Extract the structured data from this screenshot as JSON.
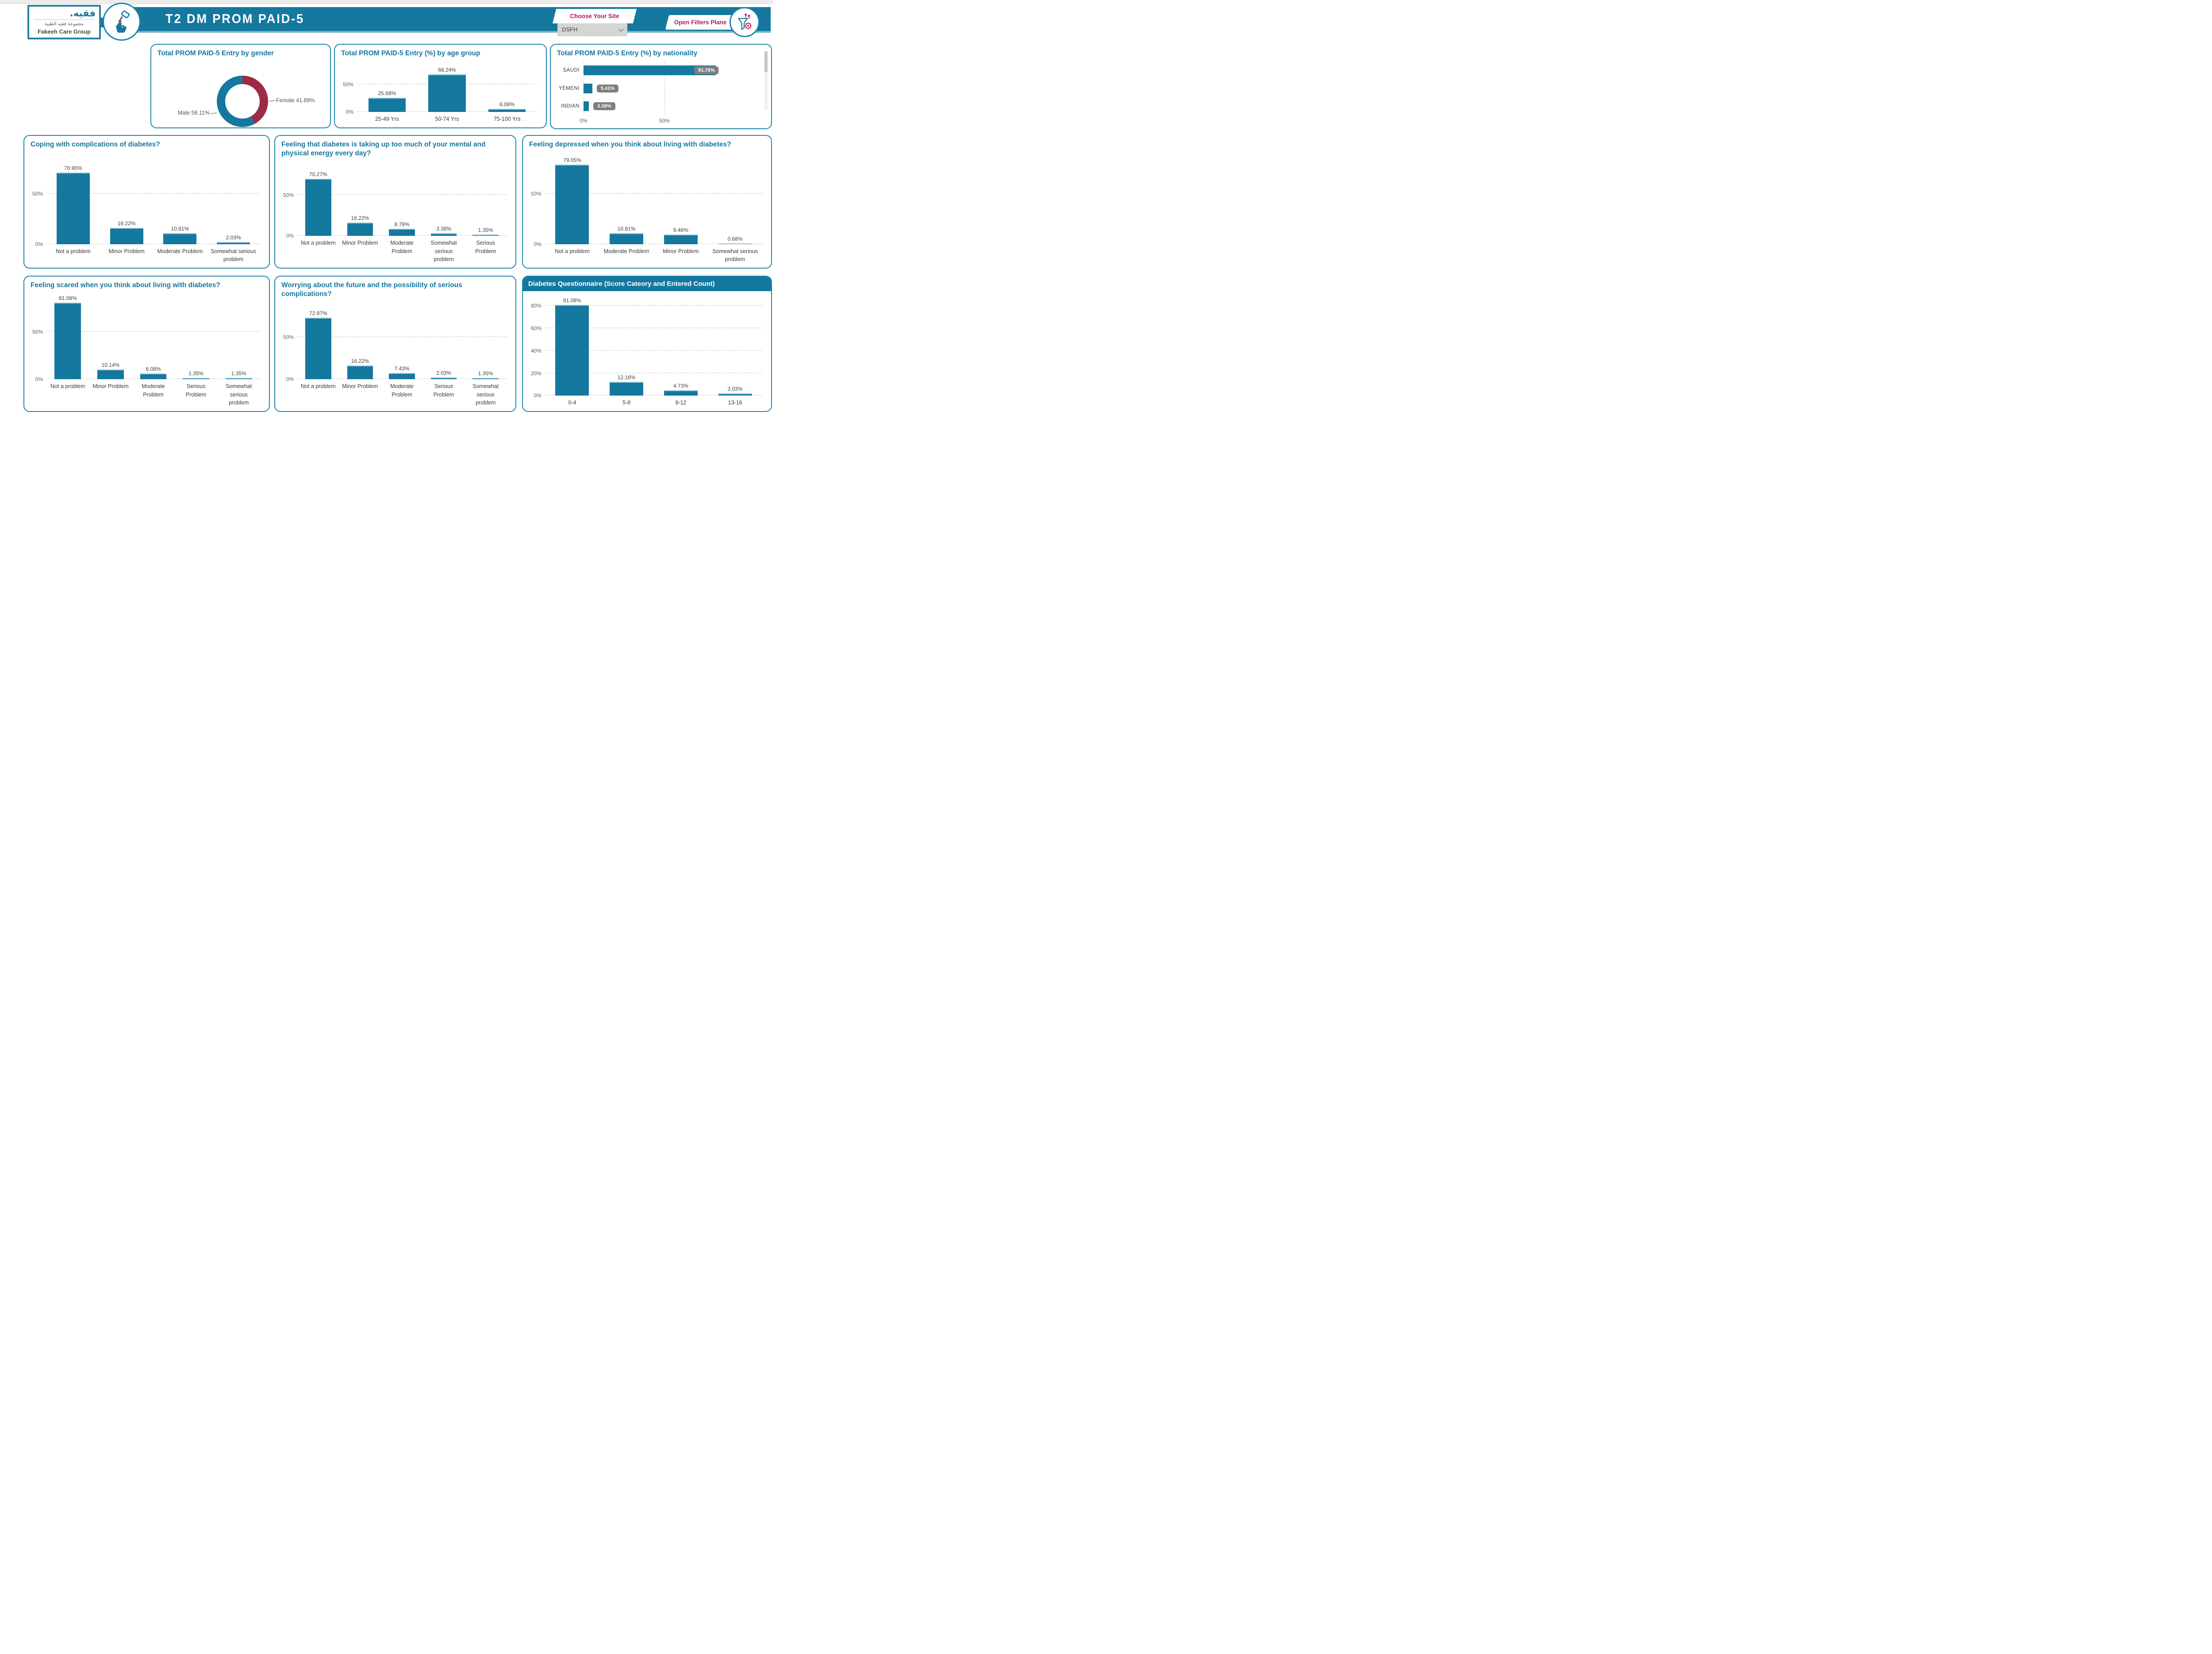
{
  "header": {
    "logo": {
      "wordmark_ar": "فقيه",
      "wordmark_dot": ".",
      "group_ar": "مجموعة فقيه الطبية",
      "group_en": "Fakeeh Care Group"
    },
    "title": "T2 DM PROM PAID-5",
    "choose_site_label": "Choose Your Site",
    "site_value": "DSFH",
    "open_filters_label": "Open Filters Plane"
  },
  "colors": {
    "teal": "#15789F",
    "crimson": "#9D2A46",
    "magenta": "#A81D65",
    "chip_gray": "#7F7F7F"
  },
  "chart_data": [
    {
      "id": "gender",
      "type": "pie",
      "donut": true,
      "title": "Total PROM PAID-5 Entry by gender",
      "labels": [
        "Male",
        "Female"
      ],
      "values": [
        58.11,
        41.89
      ],
      "colors": [
        "#15789F",
        "#9D2A46"
      ],
      "legend_position": "callouts"
    },
    {
      "id": "age",
      "type": "bar",
      "title": "Total PROM PAID-5 Entry (%) by age group",
      "categories": [
        "25-49 Yrs",
        "50-74 Yrs",
        "75-100 Yrs"
      ],
      "values": [
        25.68,
        68.24,
        6.08
      ],
      "yticks": [
        0,
        50
      ],
      "ylim": [
        0,
        90
      ],
      "grid": "dotted"
    },
    {
      "id": "nationality",
      "type": "bar",
      "orientation": "horizontal",
      "title": "Total PROM PAID-5 Entry (%) by nationality",
      "categories": [
        "SAUDI",
        "YEMENI",
        "INDIAN"
      ],
      "values": [
        81.76,
        5.41,
        3.38
      ],
      "xticks": [
        0,
        50
      ],
      "xlim": [
        0,
        105
      ],
      "grid": "dotted",
      "has_scrollbar": true
    },
    {
      "id": "coping",
      "type": "bar",
      "title": "Coping with complications of diabetes?",
      "categories": [
        "Not a problem",
        "Minor Problem",
        "Moderate Problem",
        "Somewhat serious problem"
      ],
      "values": [
        70.95,
        16.22,
        10.81,
        2.03
      ],
      "yticks": [
        0,
        50
      ],
      "ylim": [
        0,
        90
      ],
      "grid": "dotted"
    },
    {
      "id": "energy",
      "type": "bar",
      "title": "Feeling that diabetes is taking up too much of your mental and physical energy every day?",
      "categories": [
        "Not a problem",
        "Minor Problem",
        "Moderate Problem",
        "Somewhat serious problem",
        "Serious Problem"
      ],
      "values": [
        70.27,
        16.22,
        8.78,
        3.38,
        1.35
      ],
      "yticks": [
        0,
        50
      ],
      "ylim": [
        0,
        90
      ],
      "grid": "dotted"
    },
    {
      "id": "depressed",
      "type": "bar",
      "title": "Feeling depressed when you think about living with diabetes?",
      "categories": [
        "Not a problem",
        "Moderate Problem",
        "Minor Problem",
        "Somewhat serious problem"
      ],
      "values": [
        79.05,
        10.81,
        9.46,
        0.68
      ],
      "yticks": [
        0,
        50
      ],
      "ylim": [
        0,
        90
      ],
      "grid": "dotted"
    },
    {
      "id": "scared",
      "type": "bar",
      "title": "Feeling scared when you think about living with diabetes?",
      "categories": [
        "Not a problem",
        "Minor Problem",
        "Moderate Problem",
        "Serious Problem",
        "Somewhat serious problem"
      ],
      "values": [
        81.08,
        10.14,
        6.08,
        1.35,
        1.35
      ],
      "yticks": [
        0,
        50
      ],
      "ylim": [
        0,
        90
      ],
      "grid": "dotted"
    },
    {
      "id": "worrying",
      "type": "bar",
      "title": "Worrying about the future and the possibility of serious complications?",
      "categories": [
        "Not a problem",
        "Minor Problem",
        "Moderate Problem",
        "Serious Problem",
        "Somewhat serious problem"
      ],
      "values": [
        72.97,
        16.22,
        7.43,
        2.03,
        1.35
      ],
      "yticks": [
        0,
        50
      ],
      "ylim": [
        0,
        90
      ],
      "grid": "dotted"
    },
    {
      "id": "score",
      "type": "bar",
      "title": "Diabetes Questionnaire (Score Cateory and Entered Count)",
      "categories": [
        "0-4",
        "5-8",
        "9-12",
        "13-16"
      ],
      "values": [
        81.08,
        12.16,
        4.73,
        2.03
      ],
      "yticks": [
        0,
        20,
        40,
        60,
        80
      ],
      "ylim": [
        0,
        90
      ],
      "grid": "dotted",
      "title_style": "filled-band"
    }
  ]
}
